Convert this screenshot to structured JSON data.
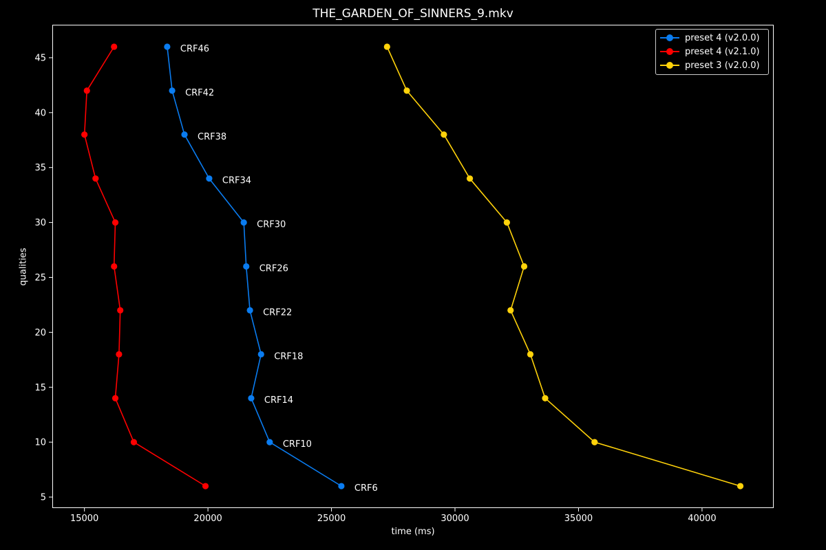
{
  "chart_data": {
    "type": "line",
    "title": "THE_GARDEN_OF_SINNERS_9.mkv",
    "xlabel": "time (ms)",
    "ylabel": "qualities",
    "xlim": [
      13700,
      42900
    ],
    "ylim": [
      4,
      48
    ],
    "xticks": [
      15000,
      20000,
      25000,
      30000,
      35000,
      40000
    ],
    "yticks": [
      5,
      10,
      15,
      20,
      25,
      30,
      35,
      40,
      45
    ],
    "grid": false,
    "legend_position": "top-right",
    "series": [
      {
        "name": "preset 4 (v2.0.0)",
        "color": "#0a7cf0",
        "points": [
          {
            "x": 25400,
            "y": 6,
            "label": "CRF6"
          },
          {
            "x": 22500,
            "y": 10,
            "label": "CRF10"
          },
          {
            "x": 21750,
            "y": 14,
            "label": "CRF14"
          },
          {
            "x": 22150,
            "y": 18,
            "label": "CRF18"
          },
          {
            "x": 21700,
            "y": 22,
            "label": "CRF22"
          },
          {
            "x": 21550,
            "y": 26,
            "label": "CRF26"
          },
          {
            "x": 21450,
            "y": 30,
            "label": "CRF30"
          },
          {
            "x": 20050,
            "y": 34,
            "label": "CRF34"
          },
          {
            "x": 19050,
            "y": 38,
            "label": "CRF38"
          },
          {
            "x": 18550,
            "y": 42,
            "label": "CRF42"
          },
          {
            "x": 18350,
            "y": 46,
            "label": "CRF46"
          }
        ]
      },
      {
        "name": "preset 4 (v2.1.0)",
        "color": "#ff0000",
        "points": [
          {
            "x": 19900,
            "y": 6
          },
          {
            "x": 17000,
            "y": 10
          },
          {
            "x": 16250,
            "y": 14
          },
          {
            "x": 16400,
            "y": 18
          },
          {
            "x": 16450,
            "y": 22
          },
          {
            "x": 16200,
            "y": 26
          },
          {
            "x": 16250,
            "y": 30
          },
          {
            "x": 15450,
            "y": 34
          },
          {
            "x": 15000,
            "y": 38
          },
          {
            "x": 15100,
            "y": 42
          },
          {
            "x": 16200,
            "y": 46
          }
        ]
      },
      {
        "name": "preset 3 (v2.0.0)",
        "color": "#ffd20a",
        "points": [
          {
            "x": 41550,
            "y": 6
          },
          {
            "x": 35650,
            "y": 10
          },
          {
            "x": 33650,
            "y": 14
          },
          {
            "x": 33050,
            "y": 18
          },
          {
            "x": 32250,
            "y": 22
          },
          {
            "x": 32800,
            "y": 26
          },
          {
            "x": 32100,
            "y": 30
          },
          {
            "x": 30600,
            "y": 34
          },
          {
            "x": 29550,
            "y": 38
          },
          {
            "x": 28050,
            "y": 42
          },
          {
            "x": 27250,
            "y": 46
          }
        ]
      }
    ]
  }
}
